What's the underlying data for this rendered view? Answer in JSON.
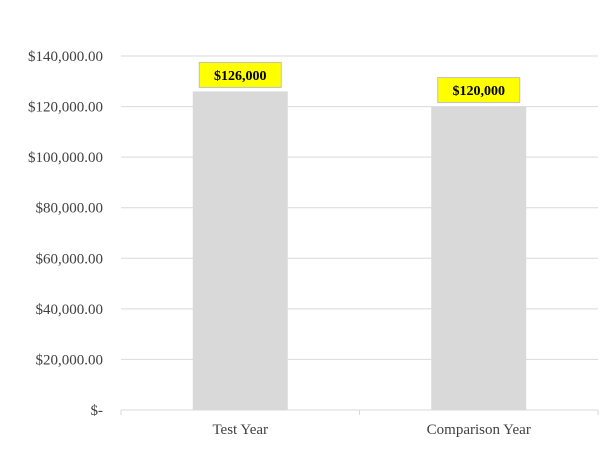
{
  "chart_data": {
    "type": "bar",
    "categories": [
      "Test Year",
      "Comparison Year"
    ],
    "values": [
      126000,
      120000
    ],
    "data_labels": [
      "$126,000",
      "$120,000"
    ],
    "ylim": [
      0,
      140000
    ],
    "yticks": [
      0,
      20000,
      40000,
      60000,
      80000,
      100000,
      120000,
      140000
    ],
    "ytick_labels": [
      "$-",
      "$20,000.00",
      "$40,000.00",
      "$60,000.00",
      "$80,000.00",
      "$100,000.00",
      "$120,000.00",
      "$140,000.00"
    ],
    "grid": true,
    "legend": "none"
  },
  "colors": {
    "bar": "#d9d9d9",
    "label_background": "#ffff00",
    "gridline": "#d9d9d9",
    "axis_text": "#404040"
  }
}
